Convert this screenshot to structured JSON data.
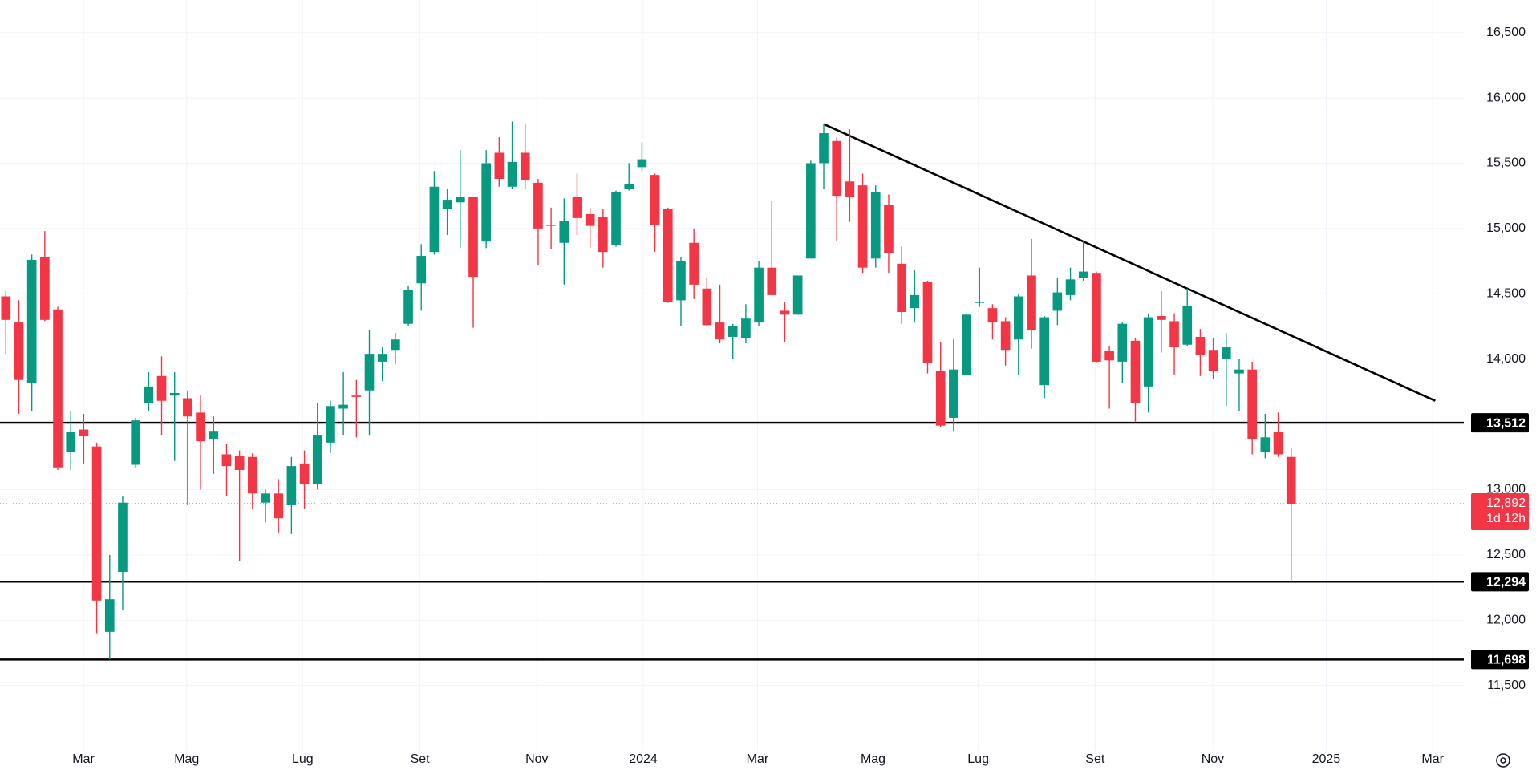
{
  "chart_data": {
    "type": "candlestick",
    "up_color": "#089981",
    "down_color": "#f23645",
    "candles": {
      "open": [
        14480,
        14280,
        13820,
        14780,
        14380,
        13290,
        13460,
        13330,
        11910,
        12370,
        13190,
        13660,
        13870,
        13720,
        13700,
        13590,
        13390,
        13270,
        13260,
        13250,
        12900,
        12970,
        12880,
        13200,
        13040,
        13360,
        13620,
        13720,
        13760,
        13980,
        14070,
        14270,
        14580,
        14820,
        15150,
        15200,
        15240,
        14900,
        15580,
        15320,
        15580,
        15350,
        15030,
        14890,
        15240,
        15110,
        15090,
        14870,
        15300,
        15470,
        15410,
        15150,
        14450,
        14890,
        14540,
        14280,
        14170,
        14160,
        14280,
        14700,
        14370,
        14340,
        14770,
        15500,
        15670,
        15360,
        15330,
        14770,
        15180,
        14730,
        14390,
        14590,
        13910,
        13550,
        13880,
        14430,
        14390,
        14290,
        14150,
        14640,
        13800,
        14370,
        14490,
        14620,
        14660,
        14060,
        13980,
        14140,
        13790,
        14330,
        14290,
        14110,
        14170,
        14070,
        14000,
        13890,
        13920,
        13290,
        13440,
        13250
      ],
      "high": [
        14520,
        14450,
        14800,
        14980,
        14400,
        13600,
        13580,
        13360,
        12500,
        12950,
        13550,
        13900,
        14020,
        13900,
        13760,
        13720,
        13560,
        13350,
        13300,
        13280,
        13000,
        13080,
        13250,
        13300,
        13660,
        13680,
        13900,
        13840,
        14220,
        14090,
        14200,
        14560,
        14880,
        15440,
        15300,
        15600,
        15240,
        15600,
        15700,
        15820,
        15800,
        15380,
        15160,
        15230,
        15420,
        15160,
        15150,
        15290,
        15500,
        15660,
        15420,
        15160,
        14780,
        15000,
        14620,
        14570,
        14270,
        14420,
        14750,
        15210,
        14440,
        14640,
        15520,
        15800,
        15700,
        15760,
        15420,
        15330,
        15260,
        14860,
        14680,
        14600,
        14130,
        14150,
        14350,
        14700,
        14420,
        14320,
        14500,
        14920,
        14330,
        14620,
        14700,
        14900,
        14670,
        14100,
        14280,
        14160,
        14350,
        14520,
        14350,
        14540,
        14230,
        14160,
        14200,
        14000,
        13980,
        13580,
        13590,
        13320
      ],
      "low": [
        14040,
        13580,
        13600,
        14290,
        13150,
        13150,
        13200,
        11900,
        11700,
        12080,
        13170,
        13600,
        13420,
        13220,
        12880,
        13000,
        13120,
        12950,
        12450,
        12850,
        12750,
        12670,
        12660,
        12850,
        13000,
        13280,
        13420,
        13400,
        13420,
        13830,
        13960,
        14250,
        14370,
        14800,
        14950,
        14850,
        14240,
        14850,
        15320,
        15300,
        15300,
        14720,
        14840,
        14570,
        14950,
        14850,
        14700,
        14860,
        15290,
        15440,
        14820,
        14430,
        14250,
        14460,
        14250,
        14120,
        14000,
        14120,
        14250,
        14490,
        14130,
        14340,
        14770,
        15300,
        14900,
        15050,
        14660,
        14700,
        14660,
        14270,
        14280,
        13890,
        13480,
        13450,
        13880,
        14400,
        14150,
        13950,
        13880,
        14080,
        13700,
        14260,
        14450,
        14600,
        13970,
        13620,
        13820,
        13520,
        13590,
        14050,
        13880,
        14100,
        13870,
        13850,
        13640,
        13600,
        13270,
        13240,
        13250,
        12290
      ],
      "close": [
        14300,
        13840,
        14760,
        14300,
        13170,
        13440,
        13410,
        12150,
        12160,
        12900,
        13530,
        13790,
        13680,
        13740,
        13560,
        13370,
        13450,
        13180,
        13150,
        12970,
        12970,
        12780,
        13180,
        13040,
        13420,
        13640,
        13650,
        13710,
        14040,
        14040,
        14150,
        14530,
        14790,
        15320,
        15220,
        15240,
        14630,
        15500,
        15380,
        15510,
        15370,
        15000,
        15020,
        15060,
        15080,
        15020,
        14820,
        15280,
        15340,
        15530,
        15030,
        14440,
        14750,
        14570,
        14260,
        14150,
        14250,
        14310,
        14700,
        14490,
        14340,
        14640,
        15500,
        15730,
        15250,
        15240,
        14700,
        15280,
        14810,
        14360,
        14490,
        13970,
        13490,
        13920,
        14340,
        14440,
        14280,
        14070,
        14480,
        14220,
        14320,
        14510,
        14610,
        14670,
        13980,
        13990,
        14270,
        13660,
        14320,
        14300,
        14090,
        14410,
        14030,
        13910,
        14090,
        13920,
        13390,
        13400,
        13270,
        12892
      ]
    },
    "xlim": [
      -0.45,
      112.3
    ],
    "xticks": [
      {
        "value": 5.98,
        "label": "Mar"
      },
      {
        "value": 13.93,
        "label": "Mag"
      },
      {
        "value": 22.86,
        "label": "Lug"
      },
      {
        "value": 31.9,
        "label": "Set"
      },
      {
        "value": 40.9,
        "label": "Nov"
      },
      {
        "value": 49.1,
        "label": "2024"
      },
      {
        "value": 57.9,
        "label": "Mar"
      },
      {
        "value": 66.8,
        "label": "Mag"
      },
      {
        "value": 74.9,
        "label": "Lug"
      },
      {
        "value": 83.9,
        "label": "Set"
      },
      {
        "value": 92.96,
        "label": "Nov"
      },
      {
        "value": 101.7,
        "label": "2025"
      },
      {
        "value": 109.9,
        "label": "Mar"
      }
    ],
    "ylim": [
      11000,
      16750
    ],
    "yticks": [
      {
        "value": 11500,
        "label": "11,500"
      },
      {
        "value": 12000,
        "label": "12,000"
      },
      {
        "value": 12500,
        "label": "12,500"
      },
      {
        "value": 13000,
        "label": "13,000"
      },
      {
        "value": 13500,
        "label": "13,500"
      },
      {
        "value": 14000,
        "label": "14,000"
      },
      {
        "value": 14500,
        "label": "14,500"
      },
      {
        "value": 15000,
        "label": "15,000"
      },
      {
        "value": 15500,
        "label": "15,500"
      },
      {
        "value": 16000,
        "label": "16,000"
      },
      {
        "value": 16500,
        "label": "16,500"
      }
    ],
    "grid": true,
    "levels": [
      {
        "value": 13512,
        "label": "13,512"
      },
      {
        "value": 12294,
        "label": "12,294"
      },
      {
        "value": 11698,
        "label": "11,698"
      }
    ],
    "trendline": {
      "x": [
        63,
        110.1
      ],
      "y": [
        15800,
        13680
      ]
    },
    "last_price": {
      "value": 12892,
      "label": "12,892",
      "countdown": "1d 12h"
    }
  }
}
